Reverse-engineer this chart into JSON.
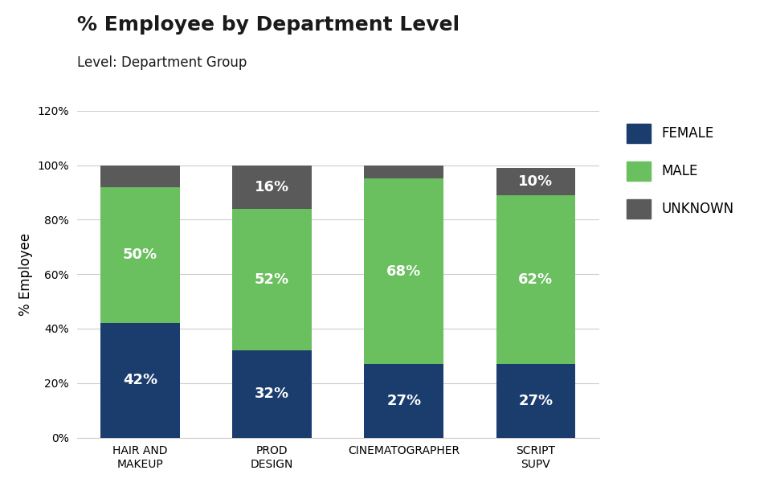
{
  "title": "% Employee by Department Level",
  "subtitle": "Level: Department Group",
  "ylabel": "% Employee",
  "categories": [
    "HAIR AND\nMAKEUP",
    "PROD\nDESIGN",
    "CINEMATOGRAPHER",
    "SCRIPT\nSUPV"
  ],
  "female": [
    42,
    32,
    27,
    27
  ],
  "male": [
    50,
    52,
    68,
    62
  ],
  "unknown": [
    8,
    16,
    5,
    10
  ],
  "show_unknown_label": [
    false,
    true,
    false,
    true
  ],
  "female_color": "#1b3d6e",
  "male_color": "#6abf5e",
  "unknown_color": "#5a5a5a",
  "female_label": "FEMALE",
  "male_label": "MALE",
  "unknown_label": "UNKNOWN",
  "ylim": [
    0,
    120
  ],
  "yticks": [
    0,
    20,
    40,
    60,
    80,
    100,
    120
  ],
  "ytick_labels": [
    "0%",
    "20%",
    "40%",
    "60%",
    "80%",
    "100%",
    "120%"
  ],
  "background_color": "#ffffff",
  "bar_width": 0.6,
  "label_fontsize": 13,
  "title_fontsize": 18,
  "subtitle_fontsize": 12,
  "legend_fontsize": 12,
  "axis_label_fontsize": 12,
  "tick_fontsize": 10,
  "grid_color": "#cccccc",
  "text_color": "#1a1a1a",
  "label_color": "#ffffff"
}
